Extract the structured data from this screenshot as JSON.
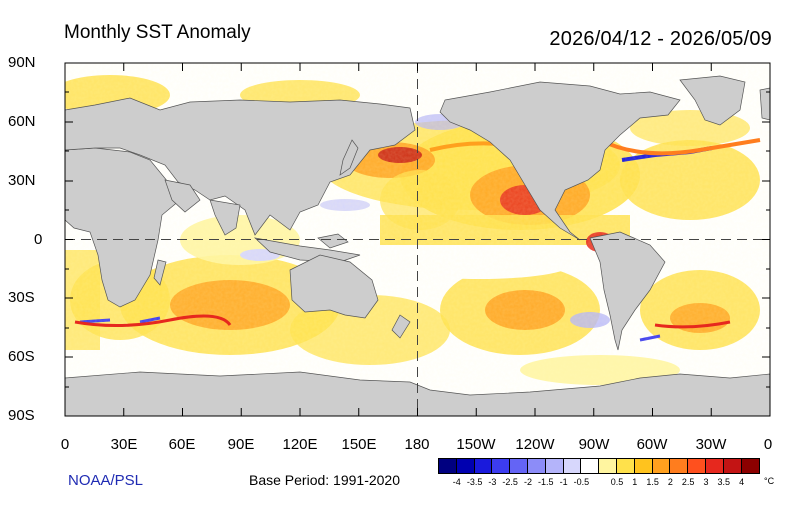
{
  "header": {
    "title": "Monthly SST Anomaly",
    "date_range": "2026/04/12 - 2026/05/09"
  },
  "axes": {
    "lat_labels": [
      "90N",
      "60N",
      "30N",
      "0",
      "30S",
      "60S",
      "90S"
    ],
    "lon_labels": [
      "0",
      "30E",
      "60E",
      "90E",
      "120E",
      "150E",
      "180",
      "150W",
      "120W",
      "90W",
      "60W",
      "30W",
      "0"
    ]
  },
  "footer": {
    "credit": "NOAA/PSL",
    "base_period": "Base Period: 1991-2020"
  },
  "colorbar": {
    "colors": [
      "#000080",
      "#0000b0",
      "#1a1adc",
      "#3c3cf0",
      "#6464f5",
      "#8c8cf8",
      "#b4b4fa",
      "#d7d7fc",
      "#ffffff",
      "#fff5a0",
      "#ffe14b",
      "#ffc31e",
      "#ffa01e",
      "#ff7d1e",
      "#ff501e",
      "#e6281e",
      "#c31414",
      "#8c0000"
    ],
    "tick_labels": [
      "-4",
      "-3.5",
      "-3",
      "-2.5",
      "-2",
      "-1.5",
      "-1",
      "-0.5",
      "0.5",
      "1",
      "1.5",
      "2",
      "2.5",
      "3",
      "3.5",
      "4"
    ],
    "unit": "°C"
  },
  "colors": {
    "land": "#cdcdcd",
    "weak_warm": "#fff5a0",
    "warm": "#ffe14b",
    "moderate": "#ffc31e",
    "strong": "#ff7d1e",
    "very_strong": "#e6281e"
  }
}
